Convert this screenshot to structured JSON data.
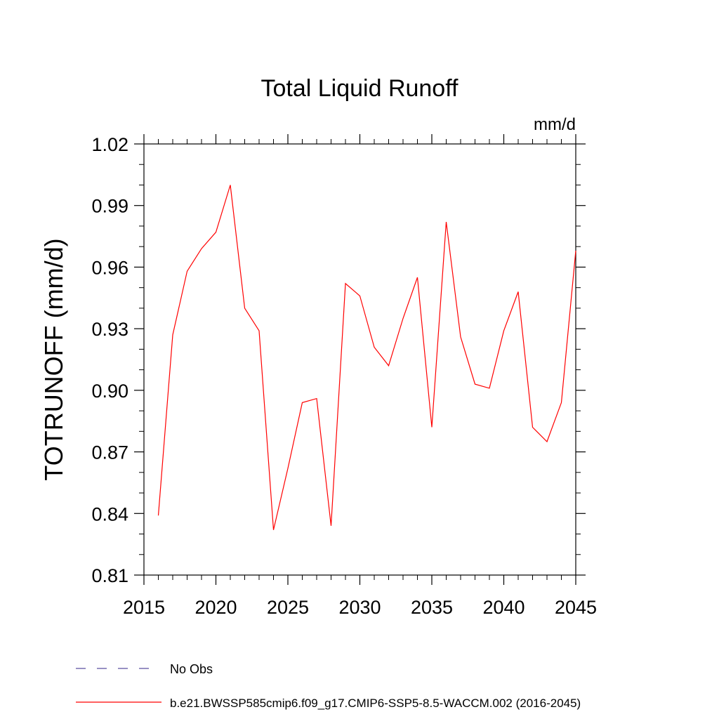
{
  "chart_data": {
    "type": "line",
    "title": "Total Liquid Runoff",
    "units": "mm/d",
    "ylabel": "TOTRUNOFF  (mm/d)",
    "xlabel": "",
    "xlim": [
      2015,
      2045
    ],
    "ylim": [
      0.81,
      1.02
    ],
    "x_ticks": [
      2015,
      2020,
      2025,
      2030,
      2035,
      2040,
      2045
    ],
    "y_ticks": [
      "0.81",
      "0.84",
      "0.87",
      "0.90",
      "0.93",
      "0.96",
      "0.99",
      "1.02"
    ],
    "grid": false,
    "legend_position": "bottom",
    "legend": [
      {
        "label": "No Obs",
        "color": "#5a4fa0",
        "style": "dashed"
      },
      {
        "label": "b.e21.BWSSP585cmip6.f09_g17.CMIP6-SSP5-8.5-WACCM.002 (2016-2045)",
        "color": "#ff0000",
        "style": "solid"
      }
    ],
    "series": [
      {
        "name": "b.e21.BWSSP585cmip6.f09_g17.CMIP6-SSP5-8.5-WACCM.002 (2016-2045)",
        "color": "#ff0000",
        "x": [
          2016,
          2017,
          2018,
          2019,
          2020,
          2021,
          2022,
          2023,
          2024,
          2025,
          2026,
          2027,
          2028,
          2029,
          2030,
          2031,
          2032,
          2033,
          2034,
          2035,
          2036,
          2037,
          2038,
          2039,
          2040,
          2041,
          2042,
          2043,
          2044,
          2045
        ],
        "values": [
          0.839,
          0.927,
          0.958,
          0.969,
          0.977,
          1.0,
          0.94,
          0.929,
          0.832,
          0.862,
          0.894,
          0.896,
          0.834,
          0.952,
          0.946,
          0.921,
          0.912,
          0.935,
          0.955,
          0.882,
          0.982,
          0.926,
          0.903,
          0.901,
          0.929,
          0.948,
          0.882,
          0.875,
          0.894,
          0.968
        ]
      }
    ]
  }
}
